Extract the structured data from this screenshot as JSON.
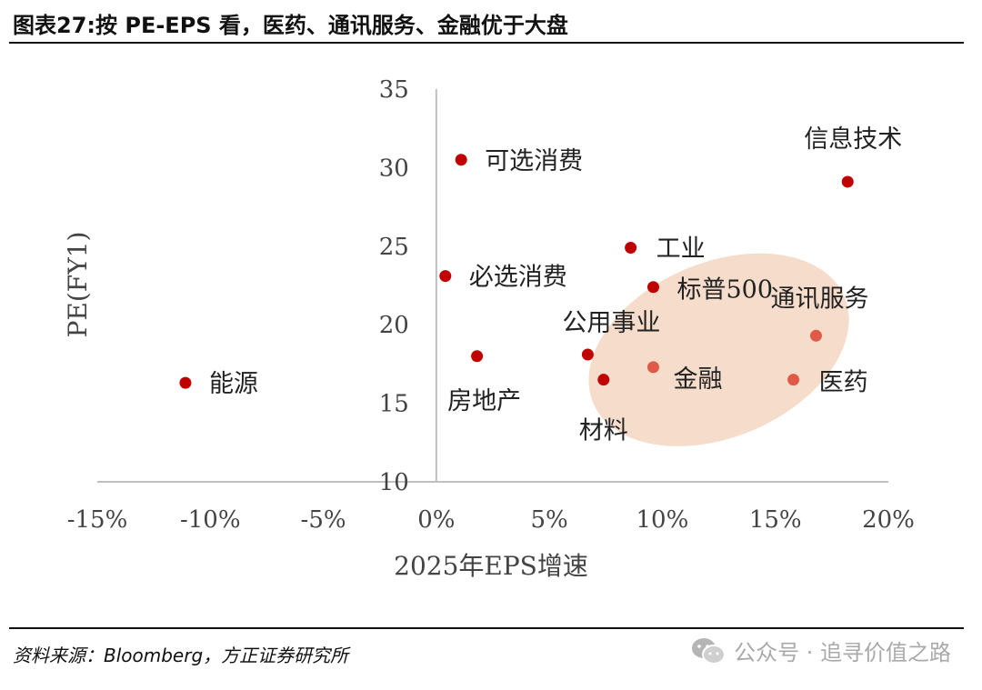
{
  "header": {
    "title": "图表27:按 PE-EPS 看，医药、通讯服务、金融优于大盘"
  },
  "footer": {
    "source": "资料来源：Bloomberg，方正证券研究所",
    "watermark": "公众号 · 追寻价值之路"
  },
  "colors": {
    "point": "#c00000",
    "highlight_point": "#e05a48",
    "highlight_fill": "#f6dccb",
    "axis": "#bfbfbf"
  },
  "icons": {
    "watermark": "wechat-icon"
  },
  "chart_data": {
    "type": "scatter",
    "title": "",
    "xlabel": "2025年EPS增速",
    "ylabel": "PE(FY1)",
    "xlim": [
      -15,
      20
    ],
    "ylim": [
      10,
      35
    ],
    "x_ticks": [
      -15,
      -10,
      -5,
      0,
      5,
      10,
      15,
      20
    ],
    "x_tick_labels": [
      "-15%",
      "-10%",
      "-5%",
      "0%",
      "5%",
      "10%",
      "15%",
      "20%"
    ],
    "y_ticks": [
      10,
      15,
      20,
      25,
      30,
      35
    ],
    "y_tick_labels": [
      "10",
      "15",
      "20",
      "25",
      "30",
      "35"
    ],
    "grid": false,
    "legend": "none",
    "points": [
      {
        "label": "信息技术",
        "x": 18.2,
        "y": 29.1,
        "highlight": false
      },
      {
        "label": "可选消费",
        "x": 1.1,
        "y": 30.5,
        "highlight": false
      },
      {
        "label": "工业",
        "x": 8.6,
        "y": 24.9,
        "highlight": false
      },
      {
        "label": "必选消费",
        "x": 0.4,
        "y": 23.1,
        "highlight": false
      },
      {
        "label": "标普500",
        "x": 9.6,
        "y": 22.4,
        "highlight": false
      },
      {
        "label": "通讯服务",
        "x": 16.8,
        "y": 19.3,
        "highlight": true
      },
      {
        "label": "公用事业",
        "x": 6.7,
        "y": 18.1,
        "highlight": false
      },
      {
        "label": "房地产",
        "x": 1.8,
        "y": 18.0,
        "highlight": false
      },
      {
        "label": "能源",
        "x": -11.1,
        "y": 16.3,
        "highlight": false
      },
      {
        "label": "金融",
        "x": 9.6,
        "y": 17.3,
        "highlight": true
      },
      {
        "label": "医药",
        "x": 15.8,
        "y": 16.5,
        "highlight": true
      },
      {
        "label": "材料",
        "x": 7.4,
        "y": 16.5,
        "highlight": false
      }
    ],
    "highlight_region": {
      "center_x": 12.5,
      "center_y": 18.4,
      "members": [
        "通讯服务",
        "金融",
        "医药"
      ]
    }
  }
}
